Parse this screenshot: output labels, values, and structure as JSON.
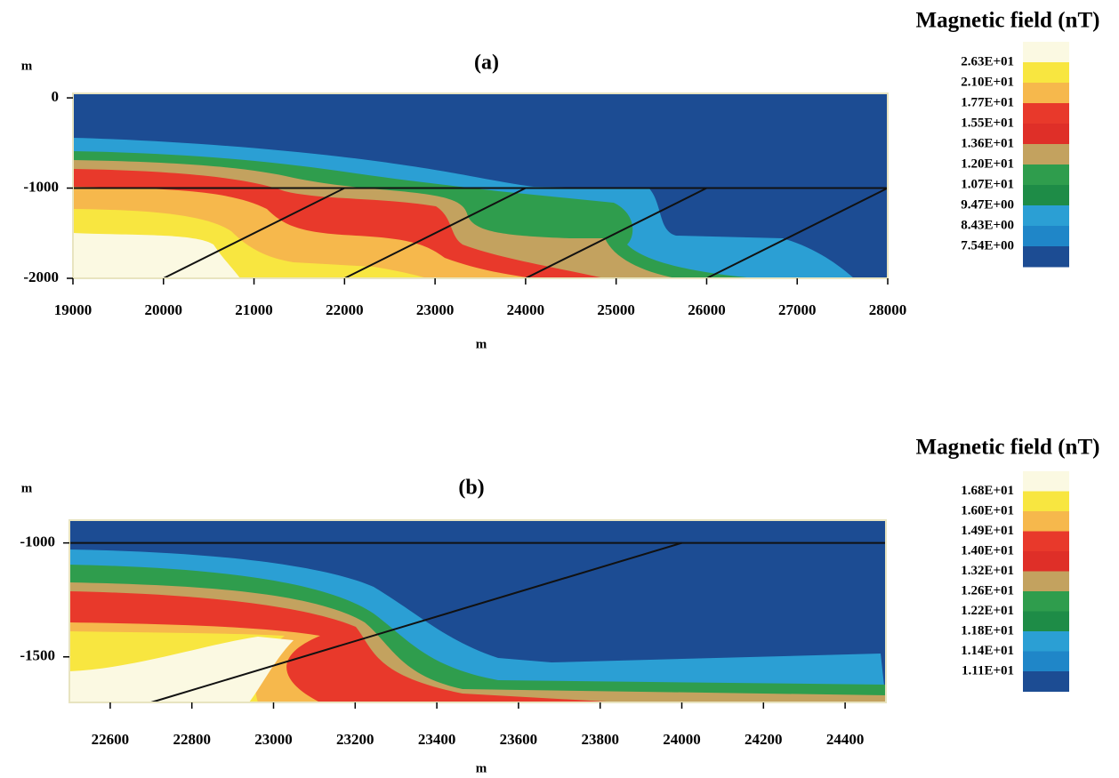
{
  "chart_data": [
    {
      "type": "contour",
      "title": "(a)",
      "xlabel": "m",
      "ylabel": "m",
      "xlim": [
        19000,
        28000
      ],
      "ylim": [
        -2000,
        50
      ],
      "xticks": [
        19000,
        20000,
        21000,
        22000,
        23000,
        24000,
        25000,
        26000,
        27000,
        28000
      ],
      "yticks": [
        0,
        -1000,
        -2000
      ],
      "lines": [
        {
          "x": [
            19000,
            28000
          ],
          "y": [
            -1000,
            -1000
          ]
        },
        {
          "x": [
            20000,
            22000
          ],
          "y": [
            -2000,
            -1000
          ]
        },
        {
          "x": [
            22000,
            24000
          ],
          "y": [
            -2000,
            -1000
          ]
        },
        {
          "x": [
            24000,
            26000
          ],
          "y": [
            -2000,
            -1000
          ]
        },
        {
          "x": [
            26000,
            28000
          ],
          "y": [
            -2000,
            -1000
          ]
        }
      ],
      "legend": {
        "title": "Magnetic field (nT)",
        "colors": [
          "#fbf9e2",
          "#f8e640",
          "#f6b84c",
          "#e8392b",
          "#df2f28",
          "#c3a25f",
          "#2f9d4d",
          "#1e8c47",
          "#2b9fd4",
          "#1f86c8",
          "#1c4c93"
        ],
        "levels": [
          {
            "value": 26.3,
            "label": "2.63E+01"
          },
          {
            "value": 21.0,
            "label": "2.10E+01"
          },
          {
            "value": 17.7,
            "label": "1.77E+01"
          },
          {
            "value": 15.5,
            "label": "1.55E+01"
          },
          {
            "value": 13.6,
            "label": "1.36E+01"
          },
          {
            "value": 12.0,
            "label": "1.20E+01"
          },
          {
            "value": 10.7,
            "label": "1.07E+01"
          },
          {
            "value": 9.47,
            "label": "9.47E+00"
          },
          {
            "value": 8.43,
            "label": "8.43E+00"
          },
          {
            "value": 7.54,
            "label": "7.54E+00"
          }
        ]
      }
    },
    {
      "type": "contour",
      "title": "(b)",
      "xlabel": "m",
      "ylabel": "m",
      "xlim": [
        22500,
        24500
      ],
      "ylim": [
        -1700,
        -900
      ],
      "xticks": [
        22600,
        22800,
        23000,
        23200,
        23400,
        23600,
        23800,
        24000,
        24200,
        24400
      ],
      "yticks": [
        -1000,
        -1500
      ],
      "lines": [
        {
          "x": [
            22500,
            24500
          ],
          "y": [
            -1000,
            -1000
          ]
        },
        {
          "x": [
            22700,
            24000
          ],
          "y": [
            -1700,
            -1000
          ]
        }
      ],
      "legend": {
        "title": "Magnetic field (nT)",
        "colors": [
          "#fbf9e2",
          "#f8e640",
          "#f6b84c",
          "#e8392b",
          "#df2f28",
          "#c3a25f",
          "#2f9d4d",
          "#1e8c47",
          "#2b9fd4",
          "#1f86c8",
          "#1c4c93"
        ],
        "levels": [
          {
            "value": 16.8,
            "label": "1.68E+01"
          },
          {
            "value": 16.0,
            "label": "1.60E+01"
          },
          {
            "value": 14.9,
            "label": "1.49E+01"
          },
          {
            "value": 14.0,
            "label": "1.40E+01"
          },
          {
            "value": 13.2,
            "label": "1.32E+01"
          },
          {
            "value": 12.6,
            "label": "1.26E+01"
          },
          {
            "value": 12.2,
            "label": "1.22E+01"
          },
          {
            "value": 11.8,
            "label": "1.18E+01"
          },
          {
            "value": 11.4,
            "label": "1.14E+01"
          },
          {
            "value": 11.1,
            "label": "1.11E+01"
          }
        ]
      }
    }
  ]
}
